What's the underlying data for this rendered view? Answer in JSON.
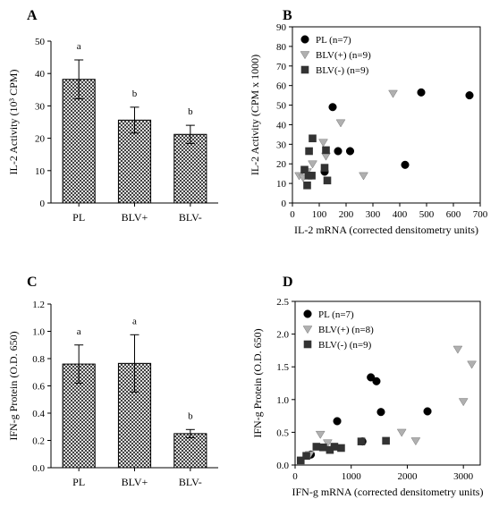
{
  "chart_data": [
    {
      "id": "A",
      "panel_label": "A",
      "type": "bar",
      "categories": [
        "PL",
        "BLV+",
        "BLV-"
      ],
      "values": [
        38.2,
        25.6,
        21.2
      ],
      "errors": [
        6.0,
        4.0,
        2.8
      ],
      "significance": [
        "a",
        "b",
        "b"
      ],
      "ylabel": "IL-2 Activity (10³ CPM)",
      "xlabel": "",
      "ylim": [
        0,
        50
      ],
      "yticks": [
        "0",
        "10",
        "20",
        "30",
        "40",
        "50"
      ],
      "bar_fill": "crosshatch"
    },
    {
      "id": "B",
      "panel_label": "B",
      "type": "scatter",
      "xlabel": "IL-2 mRNA (corrected densitometry units)",
      "ylabel": "IL-2 Activity (CPM x 1000)",
      "xlim": [
        0,
        700
      ],
      "ylim": [
        0,
        90
      ],
      "xticks": [
        "0",
        "100",
        "200",
        "300",
        "400",
        "500",
        "600",
        "700"
      ],
      "yticks": [
        "0",
        "10",
        "20",
        "30",
        "40",
        "50",
        "60",
        "70",
        "80",
        "90"
      ],
      "legend_position": "top-left",
      "series": [
        {
          "name": "PL (n=7)",
          "marker": "circle",
          "color": "#000000",
          "x": [
            150,
            170,
            215,
            120,
            420,
            480,
            660
          ],
          "y": [
            49,
            26.5,
            26.5,
            16,
            19.5,
            56.5,
            55
          ]
        },
        {
          "name": "BLV(+) (n=9)",
          "marker": "triangle-down",
          "color": "#b0b0b0",
          "x": [
            25,
            40,
            55,
            75,
            115,
            125,
            180,
            265,
            375
          ],
          "y": [
            14,
            13,
            16,
            20,
            31,
            24,
            41,
            14,
            56
          ]
        },
        {
          "name": "BLV(-) (n=9)",
          "marker": "square",
          "color": "#333333",
          "x": [
            45,
            55,
            62,
            75,
            72,
            125,
            130,
            120,
            60
          ],
          "y": [
            17,
            9,
            26.5,
            33,
            14,
            27,
            11.5,
            18,
            14
          ]
        }
      ]
    },
    {
      "id": "C",
      "panel_label": "C",
      "type": "bar",
      "categories": [
        "PL",
        "BLV+",
        "BLV-"
      ],
      "values": [
        0.76,
        0.765,
        0.25
      ],
      "errors": [
        0.14,
        0.21,
        0.03
      ],
      "significance": [
        "a",
        "a",
        "b"
      ],
      "ylabel": "IFN-g Protein (O.D. 650)",
      "xlabel": "",
      "ylim": [
        0,
        1.2
      ],
      "yticks": [
        "0.0",
        "0.2",
        "0.4",
        "0.6",
        "0.8",
        "1.0",
        "1.2"
      ],
      "bar_fill": "crosshatch"
    },
    {
      "id": "D",
      "panel_label": "D",
      "type": "scatter",
      "xlabel": "IFN-g mRNA (corrected densitometry units)",
      "ylabel": "IFN-g Protein (O.D. 650)",
      "xlim": [
        0,
        3300
      ],
      "ylim": [
        0,
        2.5
      ],
      "xticks": [
        "0",
        "1000",
        "2000",
        "3000"
      ],
      "xtick_values": [
        0,
        1000,
        2000,
        3000
      ],
      "yticks": [
        "0.0",
        "0.5",
        "1.0",
        "1.5",
        "2.0",
        "2.5"
      ],
      "legend_position": "top-left",
      "series": [
        {
          "name": "PL (n=7)",
          "marker": "circle",
          "color": "#000000",
          "x": [
            750,
            1350,
            1450,
            1530,
            2360,
            1200,
            280
          ],
          "y": [
            0.67,
            1.34,
            1.28,
            0.81,
            0.82,
            0.36,
            0.16
          ]
        },
        {
          "name": "BLV(+) (n=8)",
          "marker": "triangle-down",
          "color": "#b0b0b0",
          "x": [
            450,
            580,
            1900,
            2150,
            2900,
            3000,
            3150,
            260
          ],
          "y": [
            0.47,
            0.34,
            0.5,
            0.37,
            1.77,
            0.97,
            1.54,
            0.16
          ]
        },
        {
          "name": "BLV(-) (n=9)",
          "marker": "square",
          "color": "#333333",
          "x": [
            100,
            200,
            380,
            500,
            620,
            700,
            820,
            1180,
            1620
          ],
          "y": [
            0.07,
            0.14,
            0.28,
            0.27,
            0.23,
            0.28,
            0.26,
            0.36,
            0.37
          ]
        }
      ]
    }
  ]
}
